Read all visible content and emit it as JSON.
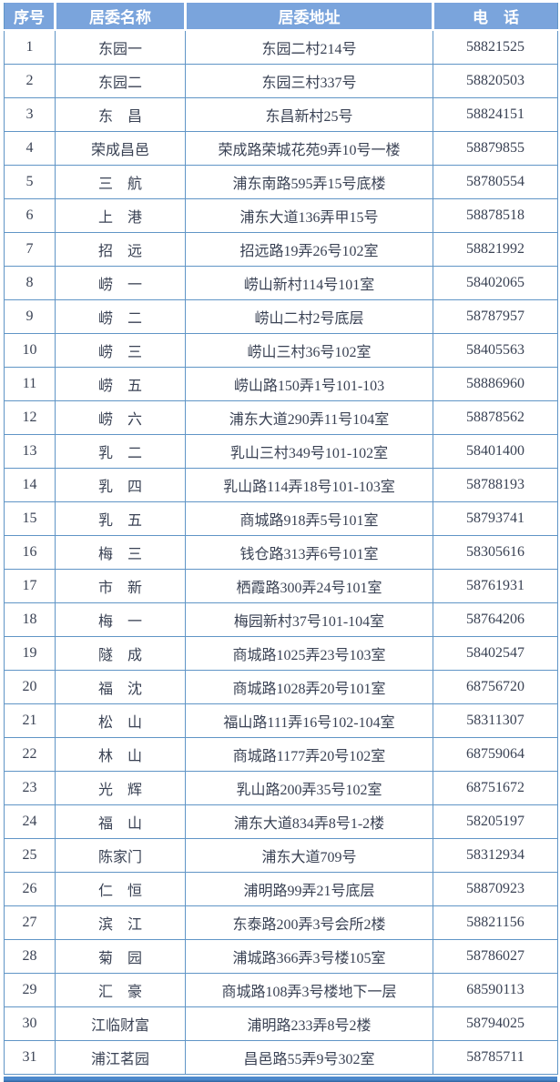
{
  "colors": {
    "header_bg": "#7aa4dc",
    "grid": "#6095c6",
    "header_text": "#ffffff",
    "body_text": "#3a4254",
    "bar_top": "#4d89cc",
    "bar_bottom": "#2e639e",
    "page_bg": "#ffffff"
  },
  "table": {
    "columns": [
      {
        "key": "index",
        "label": "序号"
      },
      {
        "key": "name",
        "label": "居委名称"
      },
      {
        "key": "address",
        "label": "居委地址"
      },
      {
        "key": "phone",
        "label": "电　话"
      }
    ],
    "rows": [
      {
        "index": "1",
        "name": "东园一",
        "address": "东园二村214号",
        "phone": "58821525"
      },
      {
        "index": "2",
        "name": "东园二",
        "address": "东园三村337号",
        "phone": "58820503"
      },
      {
        "index": "3",
        "name": "东　昌",
        "address": "东昌新村25号",
        "phone": "58824151"
      },
      {
        "index": "4",
        "name": "荣成昌邑",
        "address": "荣成路荣城花苑9弄10号一楼",
        "phone": "58879855"
      },
      {
        "index": "5",
        "name": "三　航",
        "address": "浦东南路595弄15号底楼",
        "phone": "58780554"
      },
      {
        "index": "6",
        "name": "上　港",
        "address": "浦东大道136弄甲15号",
        "phone": "58878518"
      },
      {
        "index": "7",
        "name": "招　远",
        "address": "招远路19弄26号102室",
        "phone": "58821992"
      },
      {
        "index": "8",
        "name": "崂　一",
        "address": "崂山新村114号101室",
        "phone": "58402065"
      },
      {
        "index": "9",
        "name": "崂　二",
        "address": "崂山二村2号底层",
        "phone": "58787957"
      },
      {
        "index": "10",
        "name": "崂　三",
        "address": "崂山三村36号102室",
        "phone": "58405563"
      },
      {
        "index": "11",
        "name": "崂　五",
        "address": "崂山路150弄1号101-103",
        "phone": "58886960"
      },
      {
        "index": "12",
        "name": "崂　六",
        "address": "浦东大道290弄11号104室",
        "phone": "58878562"
      },
      {
        "index": "13",
        "name": "乳　二",
        "address": "乳山三村349号101-102室",
        "phone": "58401400"
      },
      {
        "index": "14",
        "name": "乳　四",
        "address": "乳山路114弄18号101-103室",
        "phone": "58788193"
      },
      {
        "index": "15",
        "name": "乳　五",
        "address": "商城路918弄5号101室",
        "phone": "58793741"
      },
      {
        "index": "16",
        "name": "梅　三",
        "address": "钱仓路313弄6号101室",
        "phone": "58305616"
      },
      {
        "index": "17",
        "name": "市　新",
        "address": "栖霞路300弄24号101室",
        "phone": "58761931"
      },
      {
        "index": "18",
        "name": "梅　一",
        "address": "梅园新村37号101-104室",
        "phone": "58764206"
      },
      {
        "index": "19",
        "name": "隧　成",
        "address": "商城路1025弄23号103室",
        "phone": "58402547"
      },
      {
        "index": "20",
        "name": "福　沈",
        "address": "商城路1028弄20号101室",
        "phone": "68756720"
      },
      {
        "index": "21",
        "name": "松　山",
        "address": "福山路111弄16号102-104室",
        "phone": "58311307"
      },
      {
        "index": "22",
        "name": "林　山",
        "address": "商城路1177弄20号102室",
        "phone": "68759064"
      },
      {
        "index": "23",
        "name": "光　辉",
        "address": "乳山路200弄35号102室",
        "phone": "68751672"
      },
      {
        "index": "24",
        "name": "福　山",
        "address": "浦东大道834弄8号1-2楼",
        "phone": "58205197"
      },
      {
        "index": "25",
        "name": "陈家门",
        "address": "浦东大道709号",
        "phone": "58312934"
      },
      {
        "index": "26",
        "name": "仁　恒",
        "address": "浦明路99弄21号底层",
        "phone": "58870923"
      },
      {
        "index": "27",
        "name": "滨　江",
        "address": "东泰路200弄3号会所2楼",
        "phone": "58821156"
      },
      {
        "index": "28",
        "name": "菊　园",
        "address": "浦城路366弄3号楼105室",
        "phone": "58786027"
      },
      {
        "index": "29",
        "name": "汇　豪",
        "address": "商城路108弄3号楼地下一层",
        "phone": "68590113"
      },
      {
        "index": "30",
        "name": "江临财富",
        "address": "浦明路233弄8号2楼",
        "phone": "58794025"
      },
      {
        "index": "31",
        "name": "浦江茗园",
        "address": "昌邑路55弄9号302室",
        "phone": "58785711"
      }
    ]
  }
}
